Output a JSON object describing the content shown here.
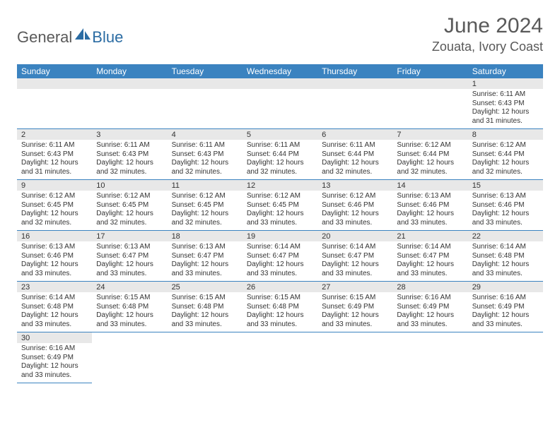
{
  "brand": {
    "part1": "General",
    "part2": "Blue"
  },
  "title": "June 2024",
  "location": "Zouata, Ivory Coast",
  "colors": {
    "header_bg": "#3b83c0",
    "header_text": "#ffffff",
    "daynum_bg": "#e8e8e8",
    "text": "#333333",
    "brand_gray": "#5a5a5a",
    "brand_blue": "#2b6ca3",
    "title_gray": "#595959"
  },
  "day_headers": [
    "Sunday",
    "Monday",
    "Tuesday",
    "Wednesday",
    "Thursday",
    "Friday",
    "Saturday"
  ],
  "weeks": [
    [
      null,
      null,
      null,
      null,
      null,
      null,
      {
        "n": "1",
        "sr": "6:11 AM",
        "ss": "6:43 PM",
        "dl": "12 hours and 31 minutes."
      }
    ],
    [
      {
        "n": "2",
        "sr": "6:11 AM",
        "ss": "6:43 PM",
        "dl": "12 hours and 31 minutes."
      },
      {
        "n": "3",
        "sr": "6:11 AM",
        "ss": "6:43 PM",
        "dl": "12 hours and 32 minutes."
      },
      {
        "n": "4",
        "sr": "6:11 AM",
        "ss": "6:43 PM",
        "dl": "12 hours and 32 minutes."
      },
      {
        "n": "5",
        "sr": "6:11 AM",
        "ss": "6:44 PM",
        "dl": "12 hours and 32 minutes."
      },
      {
        "n": "6",
        "sr": "6:11 AM",
        "ss": "6:44 PM",
        "dl": "12 hours and 32 minutes."
      },
      {
        "n": "7",
        "sr": "6:12 AM",
        "ss": "6:44 PM",
        "dl": "12 hours and 32 minutes."
      },
      {
        "n": "8",
        "sr": "6:12 AM",
        "ss": "6:44 PM",
        "dl": "12 hours and 32 minutes."
      }
    ],
    [
      {
        "n": "9",
        "sr": "6:12 AM",
        "ss": "6:45 PM",
        "dl": "12 hours and 32 minutes."
      },
      {
        "n": "10",
        "sr": "6:12 AM",
        "ss": "6:45 PM",
        "dl": "12 hours and 32 minutes."
      },
      {
        "n": "11",
        "sr": "6:12 AM",
        "ss": "6:45 PM",
        "dl": "12 hours and 32 minutes."
      },
      {
        "n": "12",
        "sr": "6:12 AM",
        "ss": "6:45 PM",
        "dl": "12 hours and 33 minutes."
      },
      {
        "n": "13",
        "sr": "6:12 AM",
        "ss": "6:46 PM",
        "dl": "12 hours and 33 minutes."
      },
      {
        "n": "14",
        "sr": "6:13 AM",
        "ss": "6:46 PM",
        "dl": "12 hours and 33 minutes."
      },
      {
        "n": "15",
        "sr": "6:13 AM",
        "ss": "6:46 PM",
        "dl": "12 hours and 33 minutes."
      }
    ],
    [
      {
        "n": "16",
        "sr": "6:13 AM",
        "ss": "6:46 PM",
        "dl": "12 hours and 33 minutes."
      },
      {
        "n": "17",
        "sr": "6:13 AM",
        "ss": "6:47 PM",
        "dl": "12 hours and 33 minutes."
      },
      {
        "n": "18",
        "sr": "6:13 AM",
        "ss": "6:47 PM",
        "dl": "12 hours and 33 minutes."
      },
      {
        "n": "19",
        "sr": "6:14 AM",
        "ss": "6:47 PM",
        "dl": "12 hours and 33 minutes."
      },
      {
        "n": "20",
        "sr": "6:14 AM",
        "ss": "6:47 PM",
        "dl": "12 hours and 33 minutes."
      },
      {
        "n": "21",
        "sr": "6:14 AM",
        "ss": "6:47 PM",
        "dl": "12 hours and 33 minutes."
      },
      {
        "n": "22",
        "sr": "6:14 AM",
        "ss": "6:48 PM",
        "dl": "12 hours and 33 minutes."
      }
    ],
    [
      {
        "n": "23",
        "sr": "6:14 AM",
        "ss": "6:48 PM",
        "dl": "12 hours and 33 minutes."
      },
      {
        "n": "24",
        "sr": "6:15 AM",
        "ss": "6:48 PM",
        "dl": "12 hours and 33 minutes."
      },
      {
        "n": "25",
        "sr": "6:15 AM",
        "ss": "6:48 PM",
        "dl": "12 hours and 33 minutes."
      },
      {
        "n": "26",
        "sr": "6:15 AM",
        "ss": "6:48 PM",
        "dl": "12 hours and 33 minutes."
      },
      {
        "n": "27",
        "sr": "6:15 AM",
        "ss": "6:49 PM",
        "dl": "12 hours and 33 minutes."
      },
      {
        "n": "28",
        "sr": "6:16 AM",
        "ss": "6:49 PM",
        "dl": "12 hours and 33 minutes."
      },
      {
        "n": "29",
        "sr": "6:16 AM",
        "ss": "6:49 PM",
        "dl": "12 hours and 33 minutes."
      }
    ],
    [
      {
        "n": "30",
        "sr": "6:16 AM",
        "ss": "6:49 PM",
        "dl": "12 hours and 33 minutes."
      },
      null,
      null,
      null,
      null,
      null,
      null
    ]
  ],
  "labels": {
    "sunrise": "Sunrise:",
    "sunset": "Sunset:",
    "daylight": "Daylight:"
  }
}
